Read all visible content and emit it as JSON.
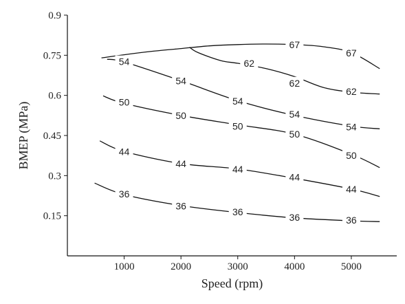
{
  "chart_data": {
    "type": "line",
    "chart_subtype": "contour",
    "title": "",
    "xlabel": "Speed (rpm)",
    "ylabel": "BMEP (MPa)",
    "xlim": [
      0,
      5800
    ],
    "ylim": [
      0,
      0.9
    ],
    "x_ticks": [
      1000,
      2000,
      3000,
      4000,
      5000
    ],
    "x_tick_labels": [
      "1000",
      "2000",
      "3000",
      "4000",
      "5000"
    ],
    "y_ticks": [
      0.15,
      0.3,
      0.45,
      0.6,
      0.75,
      0.9
    ],
    "y_tick_labels": [
      "0.15",
      "0.3",
      "0.45",
      "0.6",
      "0.75",
      "0.9"
    ],
    "grid": false,
    "legend": "none",
    "line_color": "#111111",
    "series": [
      {
        "level": "36",
        "points": [
          [
            480,
            0.272
          ],
          [
            1000,
            0.229
          ],
          [
            2000,
            0.188
          ],
          [
            3000,
            0.162
          ],
          [
            4000,
            0.142
          ],
          [
            5000,
            0.131
          ],
          [
            5500,
            0.128
          ]
        ],
        "labels": [
          {
            "text": "36",
            "x": 1000,
            "y": 0.232
          },
          {
            "text": "36",
            "x": 2000,
            "y": 0.187
          },
          {
            "text": "36",
            "x": 3000,
            "y": 0.164
          },
          {
            "text": "36",
            "x": 4000,
            "y": 0.144
          },
          {
            "text": "36",
            "x": 5000,
            "y": 0.134
          }
        ]
      },
      {
        "level": "44",
        "points": [
          [
            570,
            0.43
          ],
          [
            1000,
            0.39
          ],
          [
            2000,
            0.345
          ],
          [
            3000,
            0.325
          ],
          [
            4000,
            0.29
          ],
          [
            5000,
            0.25
          ],
          [
            5500,
            0.222
          ]
        ],
        "labels": [
          {
            "text": "44",
            "x": 1000,
            "y": 0.39
          },
          {
            "text": "44",
            "x": 2000,
            "y": 0.345
          },
          {
            "text": "44",
            "x": 3000,
            "y": 0.324
          },
          {
            "text": "44",
            "x": 4000,
            "y": 0.294
          },
          {
            "text": "44",
            "x": 5000,
            "y": 0.25
          }
        ]
      },
      {
        "level": "50",
        "points": [
          [
            630,
            0.598
          ],
          [
            1000,
            0.57
          ],
          [
            2000,
            0.525
          ],
          [
            3000,
            0.49
          ],
          [
            4000,
            0.455
          ],
          [
            5000,
            0.38
          ],
          [
            5500,
            0.33
          ]
        ],
        "labels": [
          {
            "text": "50",
            "x": 1000,
            "y": 0.575
          },
          {
            "text": "50",
            "x": 2000,
            "y": 0.525
          },
          {
            "text": "50",
            "x": 3000,
            "y": 0.485
          },
          {
            "text": "50",
            "x": 4000,
            "y": 0.455
          },
          {
            "text": "50",
            "x": 5000,
            "y": 0.376
          }
        ]
      },
      {
        "level": "54",
        "points": [
          [
            700,
            0.735
          ],
          [
            1000,
            0.725
          ],
          [
            2000,
            0.655
          ],
          [
            3000,
            0.58
          ],
          [
            4000,
            0.525
          ],
          [
            5000,
            0.485
          ],
          [
            5500,
            0.475
          ]
        ],
        "labels": [
          {
            "text": "54",
            "x": 1000,
            "y": 0.726
          },
          {
            "text": "54",
            "x": 2000,
            "y": 0.654
          },
          {
            "text": "54",
            "x": 3000,
            "y": 0.578
          },
          {
            "text": "54",
            "x": 4000,
            "y": 0.53
          },
          {
            "text": "54",
            "x": 5000,
            "y": 0.482
          }
        ]
      },
      {
        "level": "62",
        "points": [
          [
            2150,
            0.78
          ],
          [
            2300,
            0.76
          ],
          [
            2700,
            0.73
          ],
          [
            3000,
            0.72
          ],
          [
            3500,
            0.7
          ],
          [
            4000,
            0.67
          ],
          [
            4500,
            0.63
          ],
          [
            5000,
            0.612
          ],
          [
            5500,
            0.605
          ]
        ],
        "labels": [
          {
            "text": "62",
            "x": 3200,
            "y": 0.72
          },
          {
            "text": "62",
            "x": 4000,
            "y": 0.646
          },
          {
            "text": "62",
            "x": 5000,
            "y": 0.615
          }
        ]
      },
      {
        "level": "67",
        "points": [
          [
            600,
            0.74
          ],
          [
            1000,
            0.752
          ],
          [
            1500,
            0.765
          ],
          [
            2000,
            0.775
          ],
          [
            2500,
            0.785
          ],
          [
            3000,
            0.79
          ],
          [
            3500,
            0.792
          ],
          [
            4000,
            0.79
          ],
          [
            4500,
            0.782
          ],
          [
            5000,
            0.76
          ],
          [
            5500,
            0.7
          ]
        ],
        "labels": [
          {
            "text": "67",
            "x": 4000,
            "y": 0.79
          },
          {
            "text": "67",
            "x": 5000,
            "y": 0.758
          }
        ]
      }
    ]
  }
}
